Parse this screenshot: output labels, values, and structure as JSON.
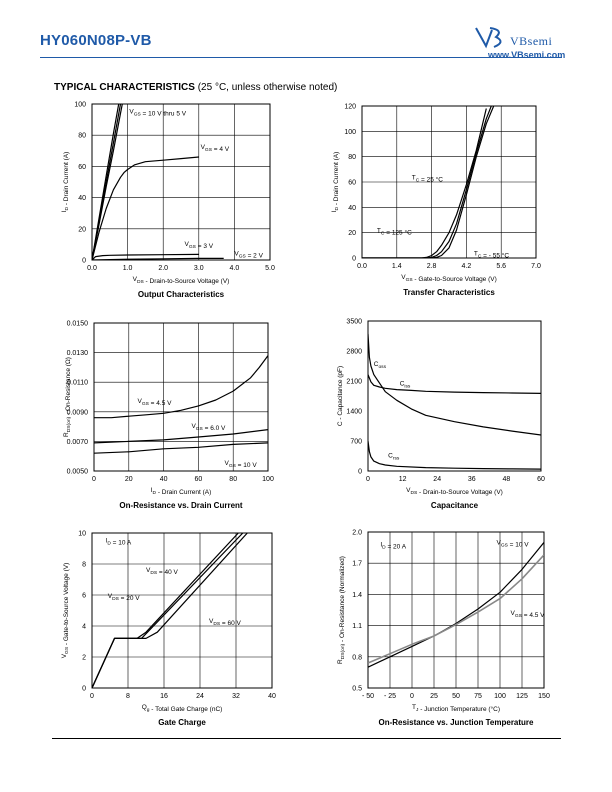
{
  "header": {
    "part_number": "HY060N08P-VB",
    "brand": "VBsemi",
    "url": "www.VBsemi.com",
    "brand_color": "#1f5aa8"
  },
  "section": {
    "title_bold": "TYPICAL CHARACTERISTICS",
    "title_rest": " (25 °C, unless otherwise noted)"
  },
  "chart_data": [
    {
      "id": "output",
      "type": "line",
      "title": "Output Characteristics",
      "xlabel": "V_DS - Drain-to-Source Voltage (V)",
      "ylabel": "I_D - Drain Current (A)",
      "xlim": [
        0,
        5
      ],
      "ylim": [
        0,
        100
      ],
      "xticks": [
        "0.0",
        "1.0",
        "2.0",
        "3.0",
        "4.0",
        "5.0"
      ],
      "yticks": [
        "0",
        "20",
        "40",
        "60",
        "80",
        "100"
      ],
      "grid": true,
      "series": [
        {
          "name": "V_GS = 10 V thru 5 V",
          "x": [
            0,
            0.2,
            0.4,
            0.6,
            0.75
          ],
          "y": [
            0,
            27,
            54,
            81,
            100
          ]
        },
        {
          "name": "V_GS = 10 V thru 5 V",
          "x": [
            0,
            0.2,
            0.4,
            0.6,
            0.8
          ],
          "y": [
            0,
            25,
            50,
            75,
            100
          ]
        },
        {
          "name": "V_GS = 10 V thru 5 V",
          "x": [
            0,
            0.2,
            0.4,
            0.6,
            0.8,
            0.85
          ],
          "y": [
            0,
            23,
            47,
            70,
            94,
            100
          ]
        },
        {
          "name": "V_GS = 4 V",
          "x": [
            0,
            0.2,
            0.4,
            0.6,
            0.8,
            0.9,
            1.0,
            1.2,
            1.5,
            2.0,
            2.5,
            3.0
          ],
          "y": [
            0,
            18,
            33,
            45,
            53,
            56,
            58,
            61,
            63,
            64,
            65,
            66
          ]
        },
        {
          "name": "V_GS = 3 V",
          "x": [
            0,
            0.1,
            0.3,
            0.5,
            1.0,
            2.0,
            3.0
          ],
          "y": [
            0,
            2.2,
            2.8,
            3.0,
            3.2,
            3.4,
            3.6
          ]
        },
        {
          "name": "V_GS = 2 V",
          "x": [
            0,
            1,
            2,
            3,
            3.7
          ],
          "y": [
            0,
            0.5,
            0.8,
            1.0,
            1.0
          ]
        }
      ],
      "annotations": [
        {
          "text": "V_GS = 10 V thru 5 V",
          "x": 1.05,
          "y": 94
        },
        {
          "text": "V_GS = 4 V",
          "x": 3.05,
          "y": 71
        },
        {
          "text": "V_GS = 3 V",
          "x": 2.6,
          "y": 9
        },
        {
          "text": "V_GS = 2 V",
          "x": 4.0,
          "y": 3
        }
      ]
    },
    {
      "id": "transfer",
      "type": "line",
      "title": "Transfer Characteristics",
      "xlabel": "V_GS - Gate-to-Source Voltage (V)",
      "ylabel": "I_D - Drain Current (A)",
      "xlim": [
        0,
        7
      ],
      "ylim": [
        0,
        120
      ],
      "xticks": [
        "0.0",
        "1.4",
        "2.8",
        "4.2",
        "5.6",
        "7.0"
      ],
      "yticks": [
        "0",
        "20",
        "40",
        "60",
        "80",
        "100",
        "120"
      ],
      "grid": true,
      "series": [
        {
          "name": "T_C = 125 °C",
          "x": [
            0,
            2.4,
            2.6,
            2.8,
            3.0,
            3.2,
            3.5,
            3.8,
            4.2,
            4.6,
            5.0
          ],
          "y": [
            0,
            0,
            0.5,
            2,
            5,
            10,
            20,
            34,
            58,
            85,
            118
          ]
        },
        {
          "name": "T_C = 25 °C",
          "x": [
            0,
            2.6,
            2.8,
            3.0,
            3.2,
            3.5,
            3.8,
            4.2,
            4.6,
            5.0,
            5.2
          ],
          "y": [
            0,
            0,
            0.5,
            2,
            5,
            13,
            27,
            54,
            83,
            110,
            120
          ]
        },
        {
          "name": "T_C = - 55 °C",
          "x": [
            0,
            2.8,
            3.0,
            3.2,
            3.5,
            3.8,
            4.2,
            4.6,
            5.0,
            5.3
          ],
          "y": [
            0,
            0,
            0.5,
            2,
            8,
            22,
            50,
            80,
            106,
            120
          ]
        }
      ],
      "annotations": [
        {
          "text": "T_C = 25 °C",
          "x": 2.0,
          "y": 62
        },
        {
          "text": "T_C = 125 °C",
          "x": 0.6,
          "y": 20
        },
        {
          "text": "T_C = - 55 °C",
          "x": 4.5,
          "y": 2
        }
      ]
    },
    {
      "id": "on_resistance",
      "type": "line",
      "title": "On-Resistance vs. Drain Current",
      "xlabel": "I_D - Drain Current (A)",
      "ylabel": "R_DS(on) - On-Resistance (Ω)",
      "xlim": [
        0,
        100
      ],
      "ylim": [
        0.005,
        0.015
      ],
      "xticks": [
        "0",
        "20",
        "40",
        "60",
        "80",
        "100"
      ],
      "yticks": [
        "0.0050",
        "0.0070",
        "0.0090",
        "0.0110",
        "0.0130",
        "0.0150"
      ],
      "grid": true,
      "series": [
        {
          "name": "V_GS = 4.5 V",
          "x": [
            0,
            10,
            20,
            30,
            40,
            50,
            60,
            70,
            80,
            90,
            95,
            100
          ],
          "y": [
            0.0086,
            0.0086,
            0.0087,
            0.0088,
            0.0089,
            0.0091,
            0.0094,
            0.0098,
            0.0104,
            0.0113,
            0.012,
            0.0128
          ]
        },
        {
          "name": "V_GS = 6.0 V",
          "x": [
            0,
            20,
            40,
            60,
            80,
            100
          ],
          "y": [
            0.0069,
            0.007,
            0.0071,
            0.0073,
            0.0075,
            0.0078
          ]
        },
        {
          "name": "V_GS = 10 V",
          "x": [
            0,
            20,
            40,
            60,
            80,
            100
          ],
          "y": [
            0.0062,
            0.0063,
            0.0065,
            0.0066,
            0.0068,
            0.0069
          ]
        }
      ],
      "annotations": [
        {
          "text": "V_GS = 4.5 V",
          "x": 25,
          "y": 0.0096
        },
        {
          "text": "V_GS = 6.0 V",
          "x": 56,
          "y": 0.0079
        },
        {
          "text": "V_GS = 10 V",
          "x": 75,
          "y": 0.0054
        }
      ]
    },
    {
      "id": "capacitance",
      "type": "line",
      "title": "Capacitance",
      "xlabel": "V_DS - Drain-to-Source Voltage (V)",
      "ylabel": "C - Capacitance (pF)",
      "xlim": [
        0,
        60
      ],
      "ylim": [
        0,
        3500
      ],
      "xticks": [
        "0",
        "12",
        "24",
        "36",
        "48",
        "60"
      ],
      "yticks": [
        "0",
        "700",
        "1400",
        "2100",
        "2800",
        "3500"
      ],
      "grid": false,
      "series": [
        {
          "name": "C_iss",
          "x": [
            0,
            1,
            2,
            4,
            6,
            10,
            15,
            20,
            30,
            40,
            50,
            60
          ],
          "y": [
            2250,
            2080,
            2000,
            1960,
            1930,
            1900,
            1880,
            1860,
            1840,
            1830,
            1820,
            1810
          ]
        },
        {
          "name": "C_oss",
          "x": [
            0,
            0.5,
            1,
            2,
            4,
            6,
            10,
            15,
            20,
            30,
            40,
            50,
            60
          ],
          "y": [
            3200,
            2650,
            2450,
            2250,
            2050,
            1850,
            1650,
            1450,
            1300,
            1150,
            1030,
            930,
            840
          ]
        },
        {
          "name": "C_rss",
          "x": [
            0,
            0.5,
            1,
            2,
            4,
            6,
            10,
            20,
            30,
            40,
            50,
            60
          ],
          "y": [
            700,
            450,
            330,
            230,
            170,
            140,
            110,
            80,
            65,
            55,
            50,
            45
          ]
        }
      ],
      "annotations": [
        {
          "text": "C_oss",
          "x": 2,
          "y": 2450
        },
        {
          "text": "C_iss",
          "x": 11,
          "y": 1990
        },
        {
          "text": "C_rss",
          "x": 7,
          "y": 320
        }
      ]
    },
    {
      "id": "gate_charge",
      "type": "line",
      "title": "Gate Charge",
      "xlabel": "Q_g - Total Gate Charge (nC)",
      "ylabel": "V_GS - Gate-to-Source Voltage (V)",
      "xlim": [
        0,
        40
      ],
      "ylim": [
        0,
        10
      ],
      "xticks": [
        "0",
        "8",
        "16",
        "24",
        "32",
        "40"
      ],
      "yticks": [
        "0",
        "2",
        "4",
        "6",
        "8",
        "10"
      ],
      "grid": true,
      "series": [
        {
          "name": "V_DS = 40 V",
          "x": [
            0,
            5,
            11,
            13,
            33.5
          ],
          "y": [
            0,
            3.2,
            3.2,
            3.8,
            10
          ]
        },
        {
          "name": "V_DS = 20 V",
          "x": [
            0,
            5,
            10,
            12,
            32.5
          ],
          "y": [
            0,
            3.2,
            3.2,
            3.6,
            10
          ]
        },
        {
          "name": "V_DS = 60 V",
          "x": [
            0,
            5,
            12,
            14.5,
            34.5
          ],
          "y": [
            0,
            3.2,
            3.2,
            3.6,
            10
          ]
        }
      ],
      "annotations": [
        {
          "text": "I_D = 10 A",
          "x": 3,
          "y": 9.4
        },
        {
          "text": "V_DS = 40 V",
          "x": 12,
          "y": 7.5
        },
        {
          "text": "V_DS = 20 V",
          "x": 3.5,
          "y": 5.8
        },
        {
          "text": "V_DS = 60 V",
          "x": 26,
          "y": 4.2
        }
      ]
    },
    {
      "id": "on_res_temp",
      "type": "line",
      "title": "On-Resistance vs. Junction Temperature",
      "xlabel": "T_J - Junction Temperature (°C)",
      "ylabel": "R_DS(on) - On-Resistance (Normalized)",
      "xlim": [
        -50,
        150
      ],
      "ylim": [
        0.5,
        2.0
      ],
      "xticks": [
        "- 50",
        "- 25",
        "0",
        "25",
        "50",
        "75",
        "100",
        "125",
        "150"
      ],
      "yticks": [
        "0.5",
        "0.8",
        "1.1",
        "1.4",
        "1.7",
        "2.0"
      ],
      "grid": true,
      "series": [
        {
          "name": "V_GS = 10 V",
          "x": [
            -50,
            -25,
            0,
            25,
            50,
            75,
            100,
            125,
            150
          ],
          "y": [
            0.7,
            0.8,
            0.9,
            1.0,
            1.12,
            1.26,
            1.42,
            1.64,
            1.9
          ]
        },
        {
          "name": "V_GS = 4.5 V",
          "x": [
            -50,
            -25,
            0,
            25,
            50,
            75,
            100,
            125,
            150
          ],
          "y": [
            0.74,
            0.83,
            0.92,
            1.0,
            1.11,
            1.23,
            1.36,
            1.55,
            1.78
          ]
        }
      ],
      "annotations": [
        {
          "text": "I_D = 20 A",
          "x": -36,
          "y": 1.86
        },
        {
          "text": "V_GS = 10 V",
          "x": 96,
          "y": 1.88
        },
        {
          "text": "V_GS = 4.5 V",
          "x": 112,
          "y": 1.2
        }
      ]
    }
  ]
}
